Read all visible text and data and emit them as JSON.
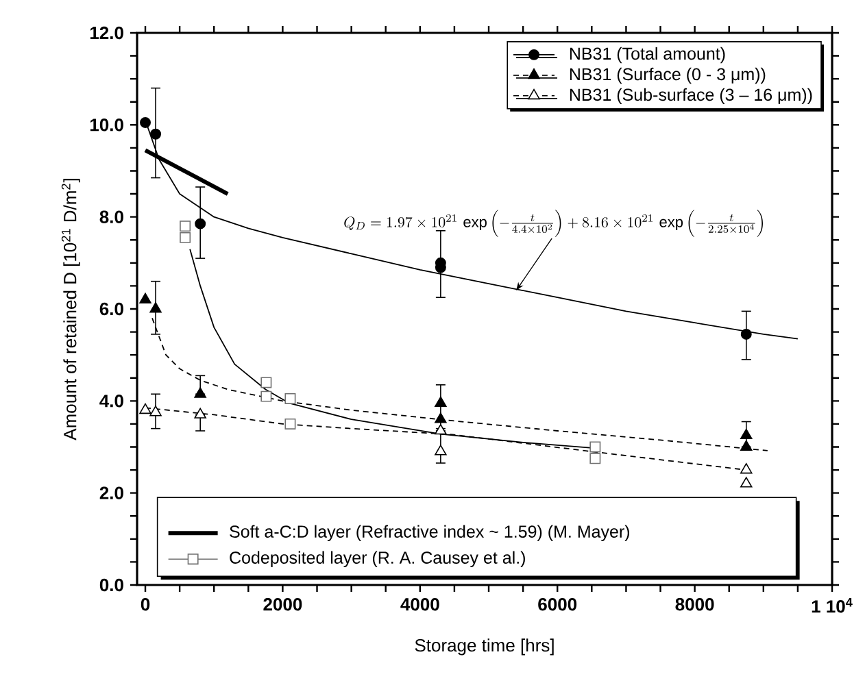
{
  "chart_data": {
    "type": "scatter",
    "xlabel": "Storage time [hrs]",
    "ylabel": "Amount of retained D [10$^{21}$ D/m$^{2}$]",
    "xlim": [
      -120,
      10000
    ],
    "ylim": [
      0,
      12
    ],
    "xticks": [
      0,
      2000,
      4000,
      6000,
      8000,
      {
        "value": 10000,
        "label": "1 10$^{4}$"
      }
    ],
    "yticks": [
      {
        "value": 0,
        "label": "0.0"
      },
      {
        "value": 2,
        "label": "2.0"
      },
      {
        "value": 4,
        "label": "4.0"
      },
      {
        "value": 6,
        "label": "6.0"
      },
      {
        "value": 8,
        "label": "8.0"
      },
      {
        "value": 10,
        "label": "10.0"
      },
      {
        "value": 12,
        "label": "12.0"
      }
    ],
    "grid": false,
    "legend": "top right",
    "annotations": [
      {
        "text": "Q_{D}=1.97\\times10^{21}\\,\\exp\\left(-\\frac{t}{4.4\\times10^{2}}\\right)+8.16\\times10^{21}\\,\\exp\\left(-\\frac{t}{2.25\\times10^{4}}\\right)",
        "x": 5400,
        "y": 6.4
      }
    ],
    "series": [
      {
        "name": "NB31 (Total amount)",
        "marker": "circle",
        "line_style": "solid",
        "color": "#000000",
        "x": [
          0,
          150,
          800,
          4300,
          4300,
          8750
        ],
        "values": [
          10.05,
          9.8,
          7.85,
          6.9,
          7.0,
          5.45
        ],
        "errors": [
          null,
          [
            8.85,
            10.8
          ],
          [
            7.1,
            8.65
          ],
          [
            6.25,
            7.7
          ],
          null,
          [
            4.9,
            5.95
          ]
        ]
      },
      {
        "name": "NB31 (Surface (0 - 3 μm))",
        "marker": "triangle",
        "line_style": "dashed",
        "color": "#000000",
        "x": [
          0,
          150,
          800,
          4300,
          4300,
          8750,
          8750
        ],
        "values": [
          6.2,
          6.0,
          4.15,
          3.95,
          3.6,
          3.25,
          3.0
        ],
        "errors": [
          null,
          [
            5.45,
            6.6
          ],
          [
            4.15,
            4.55
          ],
          [
            3.4,
            4.35
          ],
          null,
          [
            3.0,
            3.55
          ],
          null
        ]
      },
      {
        "name": "NB31 (Sub-surface (3 – 16 μm))",
        "marker": "triangle",
        "line_style": "dashed",
        "color": "#000000",
        "x": [
          0,
          150,
          800,
          4300,
          4300,
          8750,
          8750
        ],
        "values": [
          3.8,
          3.75,
          3.7,
          3.35,
          2.9,
          2.5,
          2.2
        ],
        "errors": [
          null,
          [
            3.4,
            4.15
          ],
          [
            3.35,
            3.7
          ],
          [
            2.65,
            3.35
          ],
          null,
          null,
          null
        ]
      },
      {
        "name": "Soft a-C:D layer (Refractive index ~ 1.59) (M. Mayer)",
        "type": "line",
        "line_style": "solid",
        "color": "#000000",
        "x": [
          0,
          1200
        ],
        "values": [
          9.45,
          8.5
        ]
      },
      {
        "name": "Codeposited layer (R. A. Causey et al.)",
        "marker": "square",
        "line_style": "solid",
        "color": "#707070",
        "x": [
          580,
          580,
          1760,
          1760,
          2110,
          2110,
          6550,
          6550
        ],
        "values": [
          7.8,
          7.55,
          4.4,
          4.1,
          4.05,
          3.5,
          3.0,
          2.75
        ]
      },
      {
        "type": "line",
        "line_style": "solid",
        "color": "#000000",
        "x": [
          0,
          200,
          500,
          1000,
          1500,
          2000,
          3000,
          4000,
          5000,
          6000,
          7000,
          8000,
          9000,
          9500
        ],
        "values": [
          10.1,
          9.25,
          8.5,
          8.0,
          7.75,
          7.55,
          7.2,
          6.85,
          6.55,
          6.25,
          5.95,
          5.7,
          5.45,
          5.35
        ]
      },
      {
        "type": "line",
        "line_style": "solid",
        "color": "#000000",
        "x": [
          650,
          800,
          1000,
          1300,
          1750,
          2100,
          3000,
          4300,
          5500,
          6500
        ],
        "values": [
          7.3,
          6.5,
          5.6,
          4.8,
          4.25,
          3.95,
          3.6,
          3.28,
          3.1,
          2.98
        ]
      },
      {
        "type": "line",
        "line_style": "dashed",
        "color": "#000000",
        "x": [
          100,
          300,
          500,
          800,
          1200,
          2000,
          3000,
          4470,
          6000,
          7500,
          9060
        ],
        "values": [
          5.8,
          5.0,
          4.7,
          4.45,
          4.25,
          4.0,
          3.8,
          3.57,
          3.35,
          3.15,
          2.92
        ]
      },
      {
        "type": "line",
        "line_style": "dashed",
        "color": "#000000",
        "x": [
          0,
          1000,
          2000,
          3000,
          4470,
          6500,
          8750
        ],
        "values": [
          3.85,
          3.7,
          3.5,
          3.4,
          3.27,
          2.9,
          2.5
        ]
      }
    ]
  }
}
